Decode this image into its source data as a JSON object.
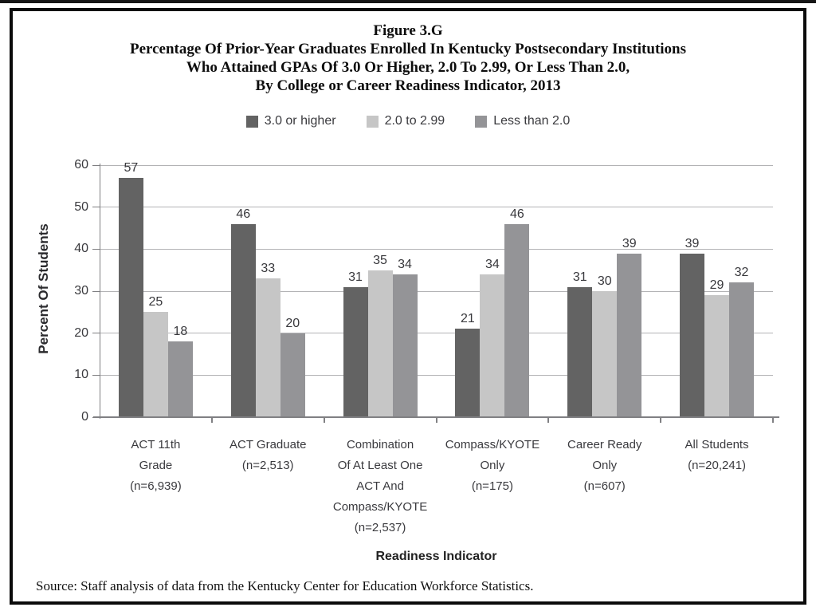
{
  "figure": {
    "title_lines": [
      "Figure 3.G",
      "Percentage Of Prior-Year Graduates Enrolled In Kentucky Postsecondary Institutions",
      "Who Attained GPAs Of 3.0 Or Higher, 2.0 To 2.99, Or Less Than 2.0,",
      "By College or Career Readiness Indicator, 2013"
    ],
    "source": "Source: Staff analysis of data from the Kentucky Center for Education Workforce Statistics."
  },
  "chart_data": {
    "type": "bar",
    "title": "Figure 3.G Percentage Of Prior-Year Graduates Enrolled In Kentucky Postsecondary Institutions Who Attained GPAs Of 3.0 Or Higher, 2.0 To 2.99, Or Less Than 2.0, By College or Career Readiness Indicator, 2013",
    "xlabel": "Readiness Indicator",
    "ylabel": "Percent Of Students",
    "ylim": [
      0,
      60
    ],
    "ytick_step": 10,
    "grid": true,
    "legend_position": "top",
    "categories": [
      "ACT 11th Grade (n=6,939)",
      "ACT Graduate (n=2,513)",
      "Combination Of At Least One ACT And Compass/KYOTE (n=2,537)",
      "Compass/KYOTE Only (n=175)",
      "Career Ready Only (n=607)",
      "All Students (n=20,241)"
    ],
    "category_lines": [
      [
        "ACT 11th",
        "Grade",
        "(n=6,939)"
      ],
      [
        "ACT Graduate",
        "(n=2,513)"
      ],
      [
        "Combination",
        "Of At Least One",
        "ACT And",
        "Compass/KYOTE",
        "(n=2,537)"
      ],
      [
        "Compass/KYOTE",
        "Only",
        "(n=175)"
      ],
      [
        "Career Ready",
        "Only",
        "(n=607)"
      ],
      [
        "All Students",
        "(n=20,241)"
      ]
    ],
    "series": [
      {
        "name": "3.0 or higher",
        "color": "#636363",
        "values": [
          57,
          46,
          31,
          21,
          31,
          39
        ]
      },
      {
        "name": "2.0 to 2.99",
        "color": "#c6c6c6",
        "values": [
          25,
          33,
          35,
          34,
          30,
          29
        ]
      },
      {
        "name": "Less than 2.0",
        "color": "#949497",
        "values": [
          18,
          20,
          34,
          46,
          39,
          32
        ]
      }
    ],
    "colors": {
      "gridline": "#b3b3b5",
      "axis": "#808083",
      "label_text": "#38383c"
    }
  }
}
